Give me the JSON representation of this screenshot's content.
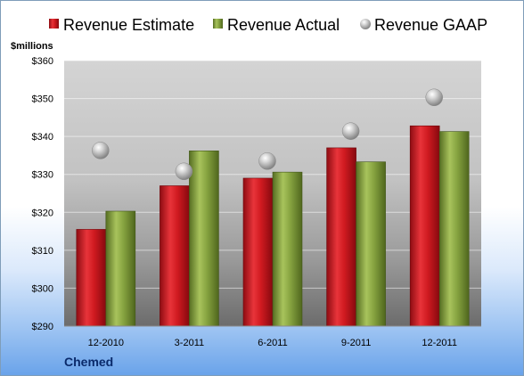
{
  "chart_data": {
    "type": "bar",
    "unit_label": "$millions",
    "company": "Chemed",
    "categories": [
      "12-2010",
      "3-2011",
      "6-2011",
      "9-2011",
      "12-2011"
    ],
    "ylim": [
      290,
      360
    ],
    "yticks": [
      290,
      300,
      310,
      320,
      330,
      340,
      350,
      360
    ],
    "ytick_labels": [
      "$290",
      "$300",
      "$310",
      "$320",
      "$330",
      "$340",
      "$350",
      "$360"
    ],
    "grid": true,
    "legend_position": "top",
    "series": [
      {
        "name": "Revenue Estimate",
        "type": "bar",
        "color": "#c0141c",
        "values": [
          315.5,
          327,
          329,
          337,
          342.8
        ]
      },
      {
        "name": "Revenue Actual",
        "type": "bar",
        "color": "#7a9a3a",
        "values": [
          320.3,
          336.2,
          330.6,
          333.3,
          341.3
        ]
      },
      {
        "name": "Revenue GAAP",
        "type": "scatter",
        "color": "#a8a8a8",
        "values": [
          336.3,
          330.8,
          333.5,
          341.4,
          350.3
        ]
      }
    ]
  }
}
